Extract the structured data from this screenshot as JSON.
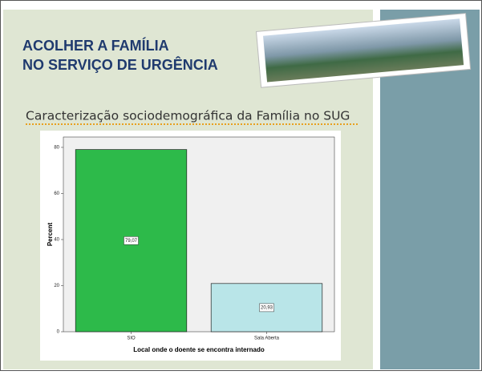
{
  "slide": {
    "title_lines": [
      "ACOLHER A FAMÍLIA",
      "NO SERVIÇO DE URGÊNCIA"
    ],
    "subtitle": "Caracterização sociodemográfica da Família no SUG"
  },
  "chart_data": {
    "type": "bar",
    "categories": [
      "SIO",
      "Sala Aberta"
    ],
    "values": [
      79.07,
      20.93
    ],
    "value_labels": [
      "79,07",
      "20,93"
    ],
    "colors": [
      "#2dba4a",
      "#b9e5e8"
    ],
    "ylabel": "Percent",
    "xlabel": "Local onde o doente se encontra internado",
    "ylim": [
      0,
      84.5
    ],
    "yticks": [
      0,
      20,
      40,
      60,
      80
    ],
    "grid": false
  }
}
